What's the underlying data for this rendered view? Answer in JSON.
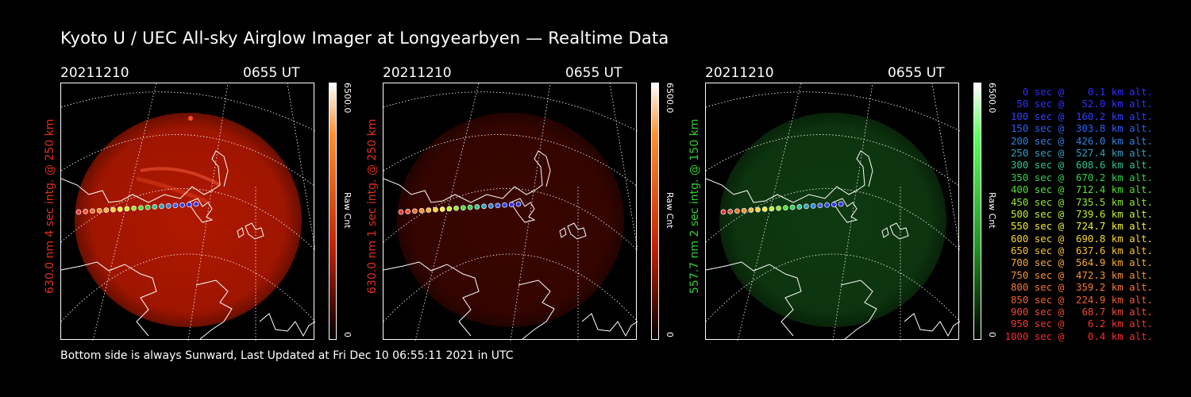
{
  "title": "Kyoto U / UEC All-sky Airglow Imager at Longyearbyen — Realtime Data",
  "footer": "Bottom side is always Sunward, Last Updated at Fri Dec 10 06:55:11 2021 in UTC",
  "panels": [
    {
      "date": "20211210",
      "time": "0655 UT",
      "side_label": "630.0 nm 4 sec intg. @ 250 km",
      "label_color": "#e03018",
      "cbar_max": "6500.0",
      "cbar_min": "0",
      "cbar_unit": "Raw Cnt",
      "glow_color": "#b01800",
      "glow_intensity": "bright"
    },
    {
      "date": "20211210",
      "time": "0655 UT",
      "side_label": "630.0 nm 1 sec intg. @ 250 km",
      "label_color": "#e03018",
      "cbar_max": "6500.0",
      "cbar_min": "0",
      "cbar_unit": "Raw Cnt",
      "glow_color": "#3a0500",
      "glow_intensity": "dim"
    },
    {
      "date": "20211210",
      "time": "0655 UT",
      "side_label": "557.7 nm 2 sec intg. @ 150 km",
      "label_color": "#30d030",
      "cbar_max": "6500.0",
      "cbar_min": "0",
      "cbar_unit": "Raw Cnt",
      "glow_color": "#0e3a10",
      "glow_intensity": "medium"
    }
  ],
  "legend": [
    {
      "text": "   0 sec @    0.1 km alt.",
      "color": "#3030ff"
    },
    {
      "text": "  50 sec @   52.0 km alt.",
      "color": "#3030ff"
    },
    {
      "text": " 100 sec @  160.2 km alt.",
      "color": "#3040ff"
    },
    {
      "text": " 150 sec @  303.8 km alt.",
      "color": "#3060f0"
    },
    {
      "text": " 200 sec @  426.0 km alt.",
      "color": "#3080e0"
    },
    {
      "text": " 250 sec @  527.4 km alt.",
      "color": "#30a0c0"
    },
    {
      "text": " 300 sec @  608.6 km alt.",
      "color": "#30c090"
    },
    {
      "text": " 350 sec @  670.2 km alt.",
      "color": "#30d050"
    },
    {
      "text": " 400 sec @  712.4 km alt.",
      "color": "#50e030"
    },
    {
      "text": " 450 sec @  735.5 km alt.",
      "color": "#90e830"
    },
    {
      "text": " 500 sec @  739.6 km alt.",
      "color": "#c0f030"
    },
    {
      "text": " 550 sec @  724.7 km alt.",
      "color": "#f0f030"
    },
    {
      "text": " 600 sec @  690.8 km alt.",
      "color": "#f8d830"
    },
    {
      "text": " 650 sec @  637.6 km alt.",
      "color": "#f8c030"
    },
    {
      "text": " 700 sec @  564.9 km alt.",
      "color": "#f8a830"
    },
    {
      "text": " 750 sec @  472.3 km alt.",
      "color": "#f89030"
    },
    {
      "text": " 800 sec @  359.2 km alt.",
      "color": "#f87830"
    },
    {
      "text": " 850 sec @  224.9 km alt.",
      "color": "#f06030"
    },
    {
      "text": " 900 sec @   68.7 km alt.",
      "color": "#f04830"
    },
    {
      "text": " 950 sec @    6.2 km alt.",
      "color": "#f03830"
    },
    {
      "text": "1000 sec @    0.4 km alt.",
      "color": "#f03030"
    }
  ]
}
